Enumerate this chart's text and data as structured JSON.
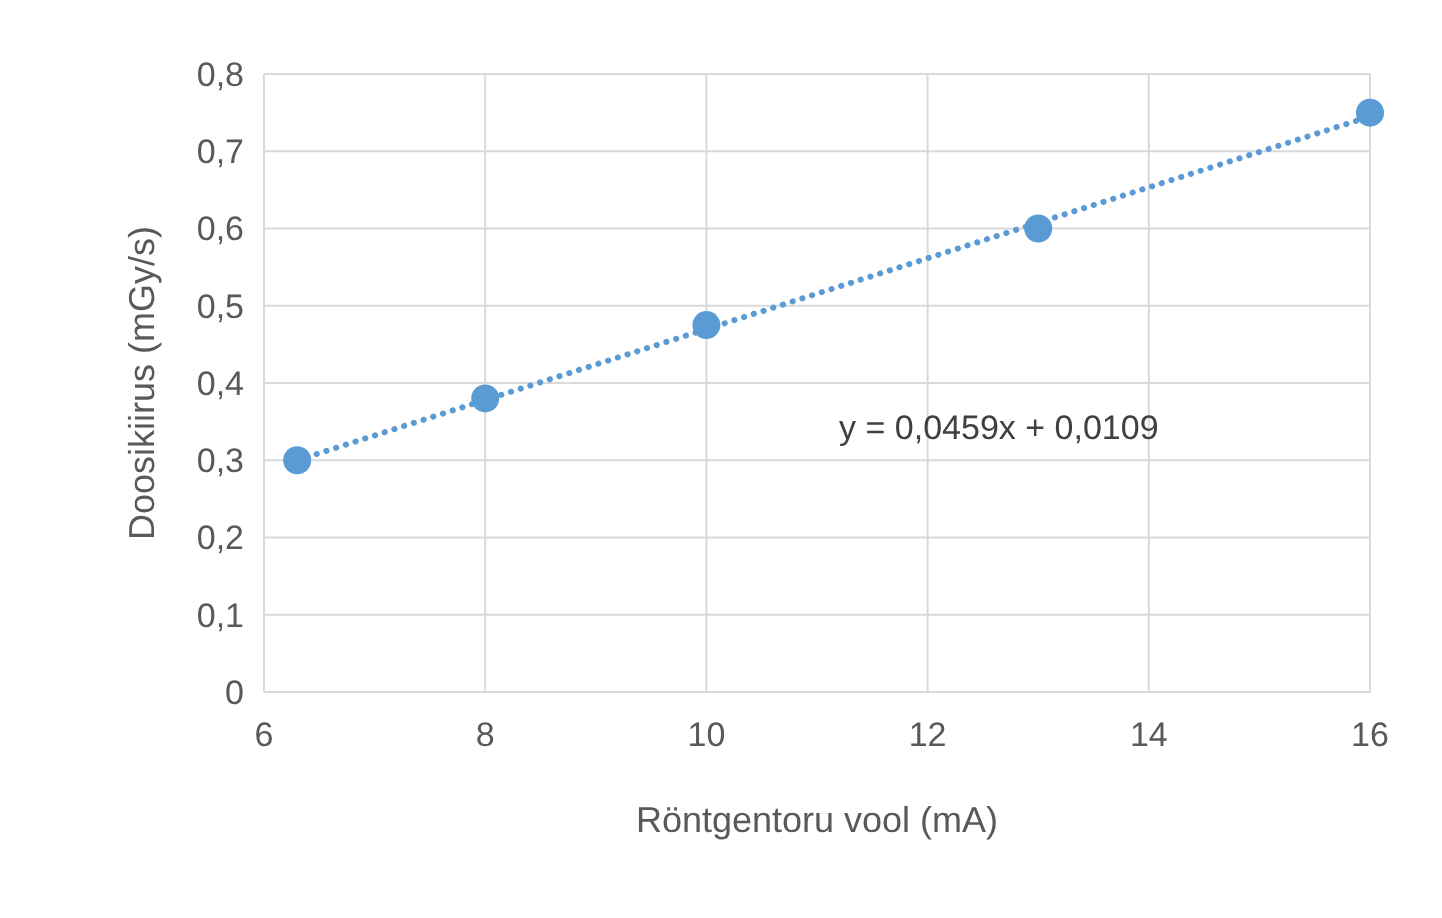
{
  "chart_data": {
    "type": "scatter",
    "xlabel": "Röntgentoru vool (mA)",
    "ylabel": "Doosikiirus (mGy/s)",
    "x": [
      6.3,
      8,
      10,
      13,
      16
    ],
    "series": [
      {
        "color": "#5b9bd5",
        "values": [
          0.3,
          0.38,
          0.475,
          0.6,
          0.75
        ],
        "marker": "circle"
      },
      {
        "type": "line",
        "color": "#5b9bd5",
        "x": [
          6.3,
          16
        ],
        "values": [
          0.3,
          0.745
        ],
        "line_style": "dotted",
        "marker": "none"
      }
    ],
    "annotations": [
      "y = 0,0459x + 0,0109"
    ],
    "xlim": [
      6,
      16
    ],
    "xticks": [
      6,
      8,
      10,
      12,
      14,
      16
    ],
    "ylim": [
      0,
      0.8
    ],
    "yticks": [
      {
        "value": 0,
        "label": "0"
      },
      {
        "value": 0.1,
        "label": "0,1"
      },
      {
        "value": 0.2,
        "label": "0,2"
      },
      {
        "value": 0.3,
        "label": "0,3"
      },
      {
        "value": 0.4,
        "label": "0,4"
      },
      {
        "value": 0.5,
        "label": "0,5"
      },
      {
        "value": 0.6,
        "label": "0,6"
      },
      {
        "value": 0.7,
        "label": "0,7"
      },
      {
        "value": 0.8,
        "label": "0,8"
      }
    ],
    "grid": true
  }
}
